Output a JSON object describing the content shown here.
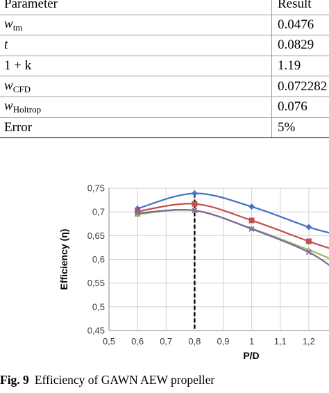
{
  "table": {
    "headers": [
      "Parameter",
      "Result"
    ],
    "rows": [
      {
        "symbol": "w",
        "sub": "tm",
        "italic": true,
        "result": "0.0476"
      },
      {
        "symbol": "t",
        "sub": "",
        "italic": true,
        "result": "0.0829"
      },
      {
        "symbol": "1 + k",
        "sub": "",
        "italic": false,
        "result": "1.19"
      },
      {
        "symbol": "w",
        "sub": "CFD",
        "italic": true,
        "result": "0.072282"
      },
      {
        "symbol": "w",
        "sub": "Holtrop",
        "italic": true,
        "result": "0.076"
      },
      {
        "symbol": "Error",
        "sub": "",
        "italic": false,
        "result": "5%"
      }
    ]
  },
  "chart_data": {
    "type": "line",
    "xlabel": "P/D",
    "ylabel": "Efficiency (η)",
    "xlim": [
      0.5,
      1.3
    ],
    "ylim": [
      0.45,
      0.75
    ],
    "x_ticks": [
      "0,5",
      "0,6",
      "0,7",
      "0,8",
      "0,9",
      "1",
      "1,1",
      "1,2"
    ],
    "y_ticks": [
      "0,45",
      "0,5",
      "0,55",
      "0,6",
      "0,65",
      "0,7",
      "0,75"
    ],
    "grid": true,
    "reference_line_x": 0.8,
    "series": [
      {
        "color": "#4472c4",
        "marker": "diamond",
        "x": [
          0.6,
          0.8,
          1.0,
          1.2,
          1.3
        ],
        "y": [
          0.707,
          0.739,
          0.711,
          0.668,
          0.652
        ]
      },
      {
        "color": "#c0504d",
        "marker": "square",
        "x": [
          0.6,
          0.8,
          1.0,
          1.2,
          1.3
        ],
        "y": [
          0.701,
          0.717,
          0.682,
          0.638,
          0.618
        ]
      },
      {
        "color": "#9bbb59",
        "marker": "triangle",
        "x": [
          0.6,
          0.8,
          1.0,
          1.2,
          1.3
        ],
        "y": [
          0.695,
          0.703,
          0.665,
          0.62,
          0.595
        ]
      },
      {
        "color": "#8064a2",
        "marker": "x",
        "x": [
          0.6,
          0.8,
          1.0,
          1.2,
          1.3
        ],
        "y": [
          0.697,
          0.703,
          0.664,
          0.615,
          0.575
        ]
      }
    ]
  },
  "caption": {
    "label": "Fig. 9",
    "text": "Efficiency of GAWN AEW propeller"
  }
}
